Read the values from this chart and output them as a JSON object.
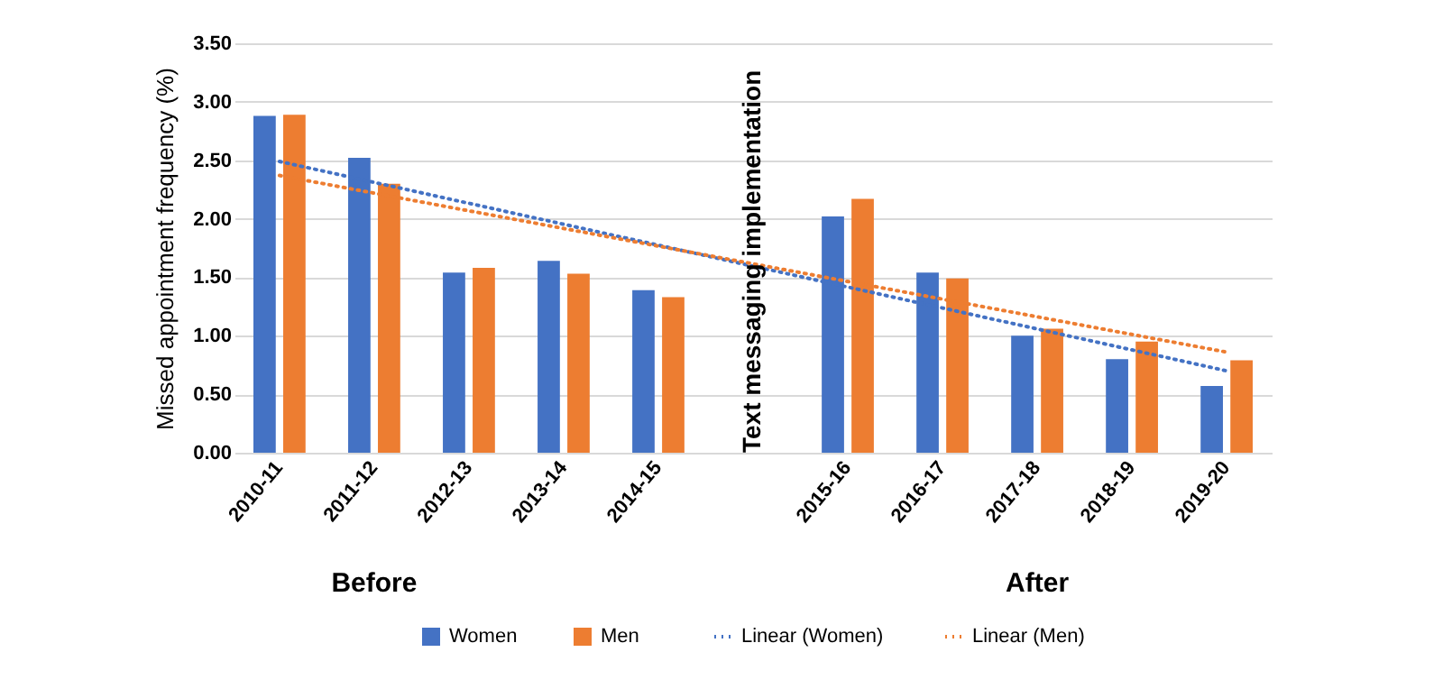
{
  "chart_data": {
    "type": "bar",
    "ylabel": "Missed appointment frequency (%)",
    "categories": [
      "2010-11",
      "2011-12",
      "2012-13",
      "2013-14",
      "2014-15",
      null,
      "2015-16",
      "2016-17",
      "2017-18",
      "2018-19",
      "2019-20"
    ],
    "series": [
      {
        "name": "Women",
        "color": "#4472c4",
        "values": [
          2.88,
          2.52,
          1.54,
          1.64,
          1.39,
          null,
          2.02,
          1.54,
          1.0,
          0.8,
          0.57
        ]
      },
      {
        "name": "Men",
        "color": "#ed7d31",
        "values": [
          2.89,
          2.3,
          1.58,
          1.53,
          1.33,
          null,
          2.17,
          1.49,
          1.06,
          0.95,
          0.79
        ]
      },
      {
        "name": "Linear (Women)",
        "type": "line",
        "line_style": "dotted",
        "color": "#4472c4",
        "values": [
          2.49,
          null,
          null,
          null,
          null,
          null,
          null,
          null,
          null,
          null,
          0.7
        ]
      },
      {
        "name": "Linear (Men)",
        "type": "line",
        "line_style": "dotted",
        "color": "#ed7d31",
        "values": [
          2.37,
          null,
          null,
          null,
          null,
          null,
          null,
          null,
          null,
          null,
          0.86
        ]
      }
    ],
    "ylim": [
      0,
      3.5
    ],
    "yticks": [
      {
        "value": 0,
        "label": "0.00"
      },
      {
        "value": 0.5,
        "label": "0.50"
      },
      {
        "value": 1,
        "label": "1.00"
      },
      {
        "value": 1.5,
        "label": "1.50"
      },
      {
        "value": 2,
        "label": "2.00"
      },
      {
        "value": 2.5,
        "label": "2.50"
      },
      {
        "value": 3,
        "label": "3.00"
      },
      {
        "value": 3.5,
        "label": "3.50"
      }
    ],
    "grid": "y",
    "legend": "bottom",
    "annotations": [
      "Text messaging implementation",
      "Before",
      "After"
    ]
  }
}
